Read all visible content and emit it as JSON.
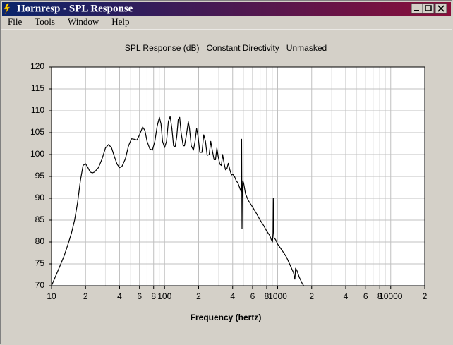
{
  "window": {
    "title": "Hornresp - SPL Response",
    "menu": [
      "File",
      "Tools",
      "Window",
      "Help"
    ]
  },
  "chart_data": {
    "type": "line",
    "title": "SPL Response (dB)   Constant Directivity   Unmasked",
    "x_label": "Frequency (hertz)",
    "log_x": true,
    "grid": true,
    "color": "#000000",
    "xlim": [
      10,
      20000
    ],
    "ylim": [
      70,
      120
    ],
    "xticks": [
      10,
      {
        "value": 20,
        "label": "2"
      },
      {
        "value": 40,
        "label": "4"
      },
      {
        "value": 60,
        "label": "6"
      },
      {
        "value": 80,
        "label": "8"
      },
      100,
      {
        "value": 200,
        "label": "2"
      },
      {
        "value": 400,
        "label": "4"
      },
      {
        "value": 600,
        "label": "6"
      },
      {
        "value": 800,
        "label": "8"
      },
      1000,
      {
        "value": 2000,
        "label": "2"
      },
      {
        "value": 4000,
        "label": "4"
      },
      {
        "value": 6000,
        "label": "6"
      },
      {
        "value": 8000,
        "label": "8"
      },
      10000,
      {
        "value": 20000,
        "label": "2"
      }
    ],
    "xminor_ticks": [
      30,
      50,
      70,
      90,
      300,
      500,
      700,
      900,
      3000,
      5000,
      7000,
      9000
    ],
    "yticks": [
      70,
      75,
      80,
      85,
      90,
      95,
      100,
      105,
      110,
      115,
      120
    ],
    "x": [
      10,
      11,
      12,
      13,
      14,
      15,
      16,
      17,
      18,
      19,
      20,
      21,
      22,
      23,
      24,
      26,
      28,
      30,
      32,
      34,
      36,
      38,
      40,
      42,
      45,
      48,
      51,
      54,
      57,
      60,
      64,
      67,
      70,
      74,
      78,
      82,
      86,
      90,
      93,
      96,
      100,
      104,
      108,
      112,
      116,
      120,
      124,
      128,
      132,
      136,
      140,
      146,
      150,
      156,
      162,
      166,
      172,
      180,
      186,
      192,
      198,
      205,
      214,
      222,
      230,
      238,
      248,
      256,
      264,
      274,
      282,
      290,
      298,
      308,
      318,
      326,
      336,
      346,
      356,
      366,
      378,
      390,
      400,
      415,
      430,
      445,
      460,
      475,
      478,
      480,
      482,
      484,
      486,
      492,
      500,
      520,
      550,
      600,
      650,
      700,
      750,
      800,
      850,
      880,
      900,
      910,
      915,
      920,
      930,
      960,
      1000,
      1100,
      1200,
      1300,
      1380,
      1420,
      1440,
      1480,
      1550,
      1650,
      1700
    ],
    "values": [
      70,
      72.5,
      74.8,
      77,
      79.5,
      82,
      85,
      89,
      94,
      97.5,
      97.9,
      97,
      96,
      95.8,
      96,
      97,
      99,
      101.5,
      102.3,
      101.5,
      99.5,
      97.8,
      97,
      97.3,
      99,
      102,
      103.6,
      103.5,
      103.3,
      104.5,
      106.3,
      105.5,
      103,
      101.3,
      101,
      103,
      106.5,
      108.5,
      107,
      103,
      101.6,
      103,
      107.5,
      108.7,
      106,
      102,
      101.8,
      104,
      108,
      108.5,
      105,
      102,
      102,
      104.5,
      107.5,
      106,
      102,
      101,
      103,
      106,
      104,
      100.5,
      100.5,
      104.5,
      103,
      99.8,
      100,
      103,
      101,
      98.8,
      98.8,
      101.5,
      99.5,
      97.8,
      97.5,
      100,
      98,
      96.5,
      96.8,
      98,
      96.5,
      95.3,
      95.5,
      95,
      94,
      93.5,
      92.5,
      91.5,
      96,
      103.5,
      93,
      83,
      90,
      94,
      93.5,
      91,
      89.5,
      88,
      86.5,
      85,
      83.8,
      82.5,
      81.5,
      80.5,
      80,
      82,
      90,
      84,
      81,
      80.5,
      79.5,
      78,
      76.5,
      74.5,
      73,
      71.5,
      74,
      73.5,
      72,
      70.5,
      70
    ]
  }
}
